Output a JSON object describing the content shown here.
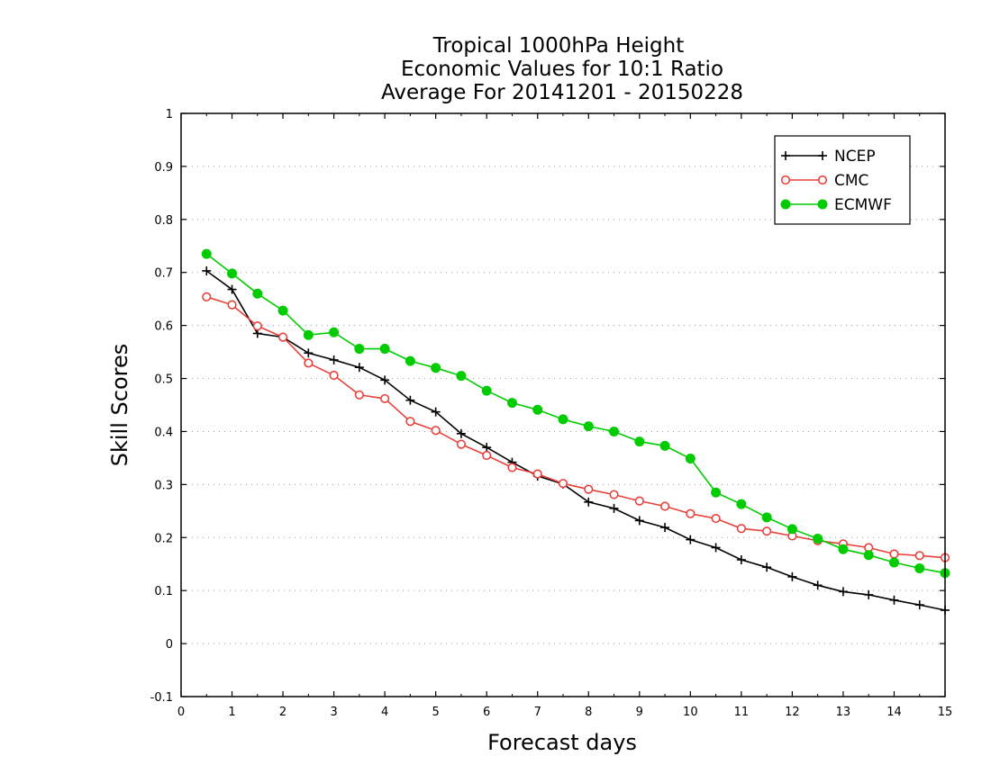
{
  "chart_data": {
    "type": "line",
    "title_lines": [
      "Tropical 1000hPa Height",
      "Economic Values for 10:1 Ratio",
      "Average For 20141201 - 20150228"
    ],
    "xlabel": "Forecast days",
    "ylabel": "Skill Scores",
    "xlim": [
      0,
      15
    ],
    "ylim": [
      -0.1,
      1
    ],
    "x_ticks": [
      "0",
      "1",
      "2",
      "3",
      "4",
      "5",
      "6",
      "7",
      "8",
      "9",
      "10",
      "11",
      "12",
      "13",
      "14",
      "15"
    ],
    "y_ticks": [
      "-0.1",
      "0",
      "0.1",
      "0.2",
      "0.3",
      "0.4",
      "0.5",
      "0.6",
      "0.7",
      "0.8",
      "0.9",
      "1"
    ],
    "grid": "horizontal dotted",
    "legend_position": "top-right",
    "x": [
      0.5,
      1,
      1.5,
      2,
      2.5,
      3,
      3.5,
      4,
      4.5,
      5,
      5.5,
      6,
      6.5,
      7,
      7.5,
      8,
      8.5,
      9,
      9.5,
      10,
      10.5,
      11,
      11.5,
      12,
      12.5,
      13,
      13.5,
      14,
      14.5,
      15
    ],
    "series": [
      {
        "name": "NCEP",
        "color": "#000000",
        "marker": "plus",
        "values": [
          0.703,
          0.668,
          0.585,
          0.578,
          0.548,
          0.535,
          0.521,
          0.497,
          0.459,
          0.437,
          0.396,
          0.37,
          0.342,
          0.316,
          0.301,
          0.267,
          0.255,
          0.232,
          0.219,
          0.196,
          0.181,
          0.158,
          0.144,
          0.126,
          0.11,
          0.098,
          0.092,
          0.082,
          0.073,
          0.063
        ]
      },
      {
        "name": "CMC",
        "color": "#e8413c",
        "marker": "open-circle",
        "values": [
          0.654,
          0.639,
          0.599,
          0.578,
          0.529,
          0.506,
          0.469,
          0.462,
          0.419,
          0.402,
          0.376,
          0.355,
          0.332,
          0.32,
          0.302,
          0.291,
          0.281,
          0.269,
          0.259,
          0.245,
          0.236,
          0.217,
          0.212,
          0.203,
          0.194,
          0.188,
          0.181,
          0.169,
          0.166,
          0.162
        ]
      },
      {
        "name": "ECMWF",
        "color": "#00cc00",
        "marker": "filled-circle",
        "values": [
          0.735,
          0.698,
          0.66,
          0.628,
          0.582,
          0.587,
          0.556,
          0.556,
          0.533,
          0.52,
          0.505,
          0.477,
          0.454,
          0.441,
          0.423,
          0.41,
          0.4,
          0.381,
          0.373,
          0.349,
          0.285,
          0.263,
          0.238,
          0.216,
          0.198,
          0.178,
          0.167,
          0.153,
          0.142,
          0.133
        ]
      }
    ]
  }
}
